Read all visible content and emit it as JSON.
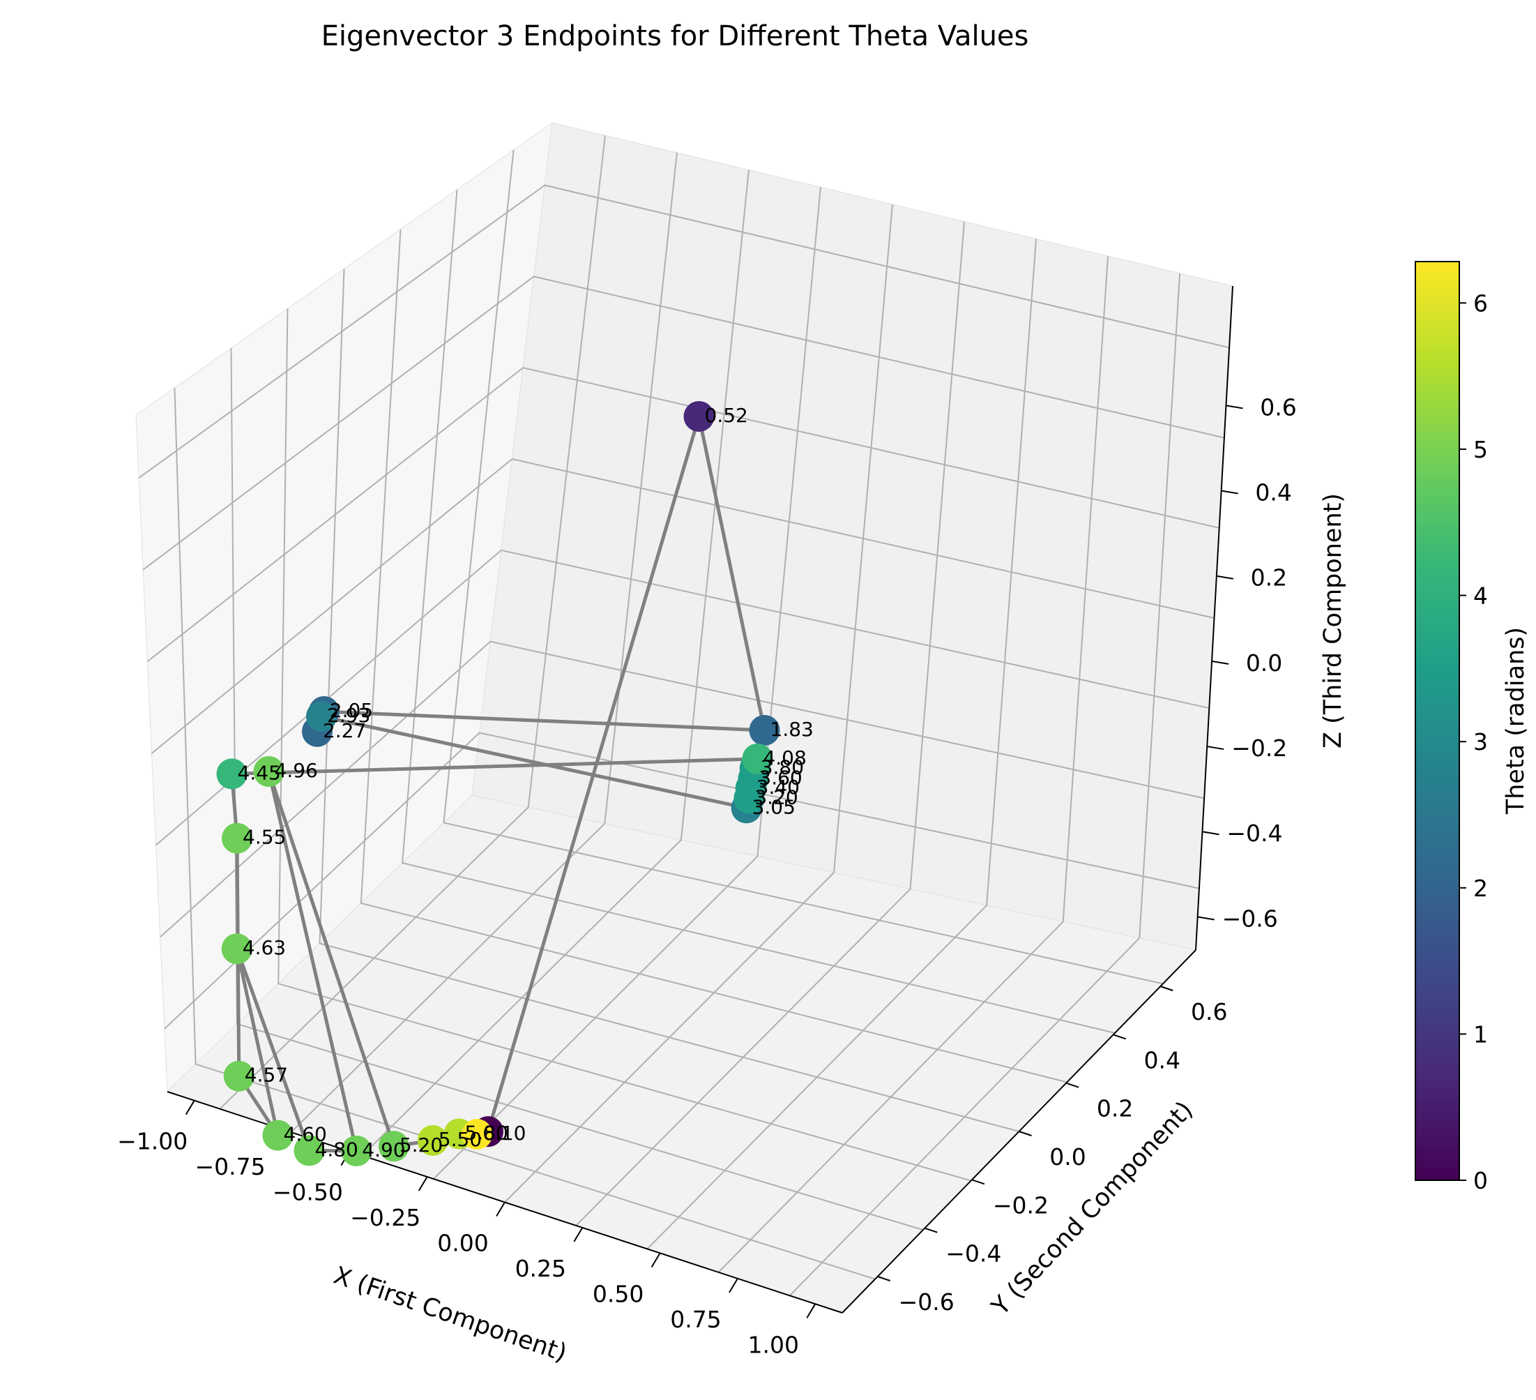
{
  "chart_data": {
    "type": "scatter",
    "projection": "3d",
    "title": "Eigenvector 3 Endpoints for Different Theta Values",
    "xlabel": "X (First Component)",
    "ylabel": "Y (Second Component)",
    "zlabel": "Z (Third Component)",
    "x_ticks": [
      "−1.00",
      "−0.75",
      "−0.50",
      "−0.25",
      "0.00",
      "0.25",
      "0.50",
      "0.75",
      "1.00"
    ],
    "y_ticks": [
      "−0.6",
      "−0.4",
      "−0.2",
      "0.0",
      "0.2",
      "0.4",
      "0.6"
    ],
    "z_ticks": [
      "−0.6",
      "−0.4",
      "−0.2",
      "0.0",
      "0.2",
      "0.4",
      "0.6"
    ],
    "xlim": [
      -1.0,
      1.0
    ],
    "ylim": [
      -0.6,
      0.6
    ],
    "zlim": [
      -0.6,
      0.6
    ],
    "grid": true,
    "connecting_line_color": "#808080",
    "colorbar": {
      "label": "Theta (radians)",
      "min": 0,
      "max": 6.283,
      "ticks": [
        "0",
        "1",
        "2",
        "3",
        "4",
        "5",
        "6"
      ],
      "colormap": "viridis",
      "colors": [
        "#440154",
        "#482878",
        "#3e4989",
        "#31688e",
        "#26828e",
        "#1f9e89",
        "#35b779",
        "#6ece58",
        "#b5de2b",
        "#fde725"
      ]
    },
    "points": [
      {
        "theta": 0.0,
        "x": 0.0,
        "y": 0.0,
        "z": -0.71,
        "label": ""
      },
      {
        "theta": 0.52,
        "x": 0.5,
        "y": 0.5,
        "z": 0.7,
        "label": "0.52"
      },
      {
        "theta": 1.83,
        "x": 0.72,
        "y": 0.55,
        "z": 0.0,
        "label": "1.83"
      },
      {
        "theta": 2.05,
        "x": -0.75,
        "y": 0.2,
        "z": 0.2,
        "label": "2.05"
      },
      {
        "theta": 2.27,
        "x": -0.77,
        "y": 0.19,
        "z": 0.16,
        "label": "2.27"
      },
      {
        "theta": 2.93,
        "x": -0.76,
        "y": 0.2,
        "z": 0.19,
        "label": "2.93"
      },
      {
        "theta": 3.05,
        "x": 0.7,
        "y": 0.47,
        "z": -0.15,
        "label": "3.05"
      },
      {
        "theta": 3.2,
        "x": 0.71,
        "y": 0.47,
        "z": -0.13,
        "label": "3.20"
      },
      {
        "theta": 3.4,
        "x": 0.71,
        "y": 0.48,
        "z": -0.11,
        "label": "3.40"
      },
      {
        "theta": 3.6,
        "x": 0.72,
        "y": 0.48,
        "z": -0.09,
        "label": "3.60"
      },
      {
        "theta": 3.8,
        "x": 0.72,
        "y": 0.49,
        "z": -0.07,
        "label": "3.80"
      },
      {
        "theta": 4.08,
        "x": 0.73,
        "y": 0.49,
        "z": -0.05,
        "label": "4.08"
      },
      {
        "theta": 4.45,
        "x": -0.98,
        "y": 0.0,
        "z": 0.12,
        "label": "4.45"
      },
      {
        "theta": 4.55,
        "x": -0.96,
        "y": 0.0,
        "z": -0.02,
        "label": "4.55"
      },
      {
        "theta": 4.57,
        "x": -0.83,
        "y": -0.2,
        "z": -0.5,
        "label": "4.57"
      },
      {
        "theta": 4.6,
        "x": -0.62,
        "y": -0.3,
        "z": -0.62,
        "label": "4.60"
      },
      {
        "theta": 4.63,
        "x": -0.93,
        "y": -0.05,
        "z": -0.25,
        "label": "4.63"
      },
      {
        "theta": 4.8,
        "x": -0.5,
        "y": -0.3,
        "z": -0.66,
        "label": "4.80"
      },
      {
        "theta": 4.9,
        "x": -0.35,
        "y": -0.25,
        "z": -0.68,
        "label": "4.90"
      },
      {
        "theta": 4.96,
        "x": -0.9,
        "y": 0.1,
        "z": 0.1,
        "label": "4.96"
      },
      {
        "theta": 5.2,
        "x": -0.25,
        "y": -0.18,
        "z": -0.69,
        "label": "5.20"
      },
      {
        "theta": 5.5,
        "x": -0.15,
        "y": -0.1,
        "z": -0.7,
        "label": "5.50"
      },
      {
        "theta": 5.8,
        "x": -0.08,
        "y": -0.05,
        "z": -0.7,
        "label": "5.80"
      },
      {
        "theta": 6.1,
        "x": -0.03,
        "y": -0.02,
        "z": -0.71,
        "label": "6.10"
      }
    ]
  }
}
